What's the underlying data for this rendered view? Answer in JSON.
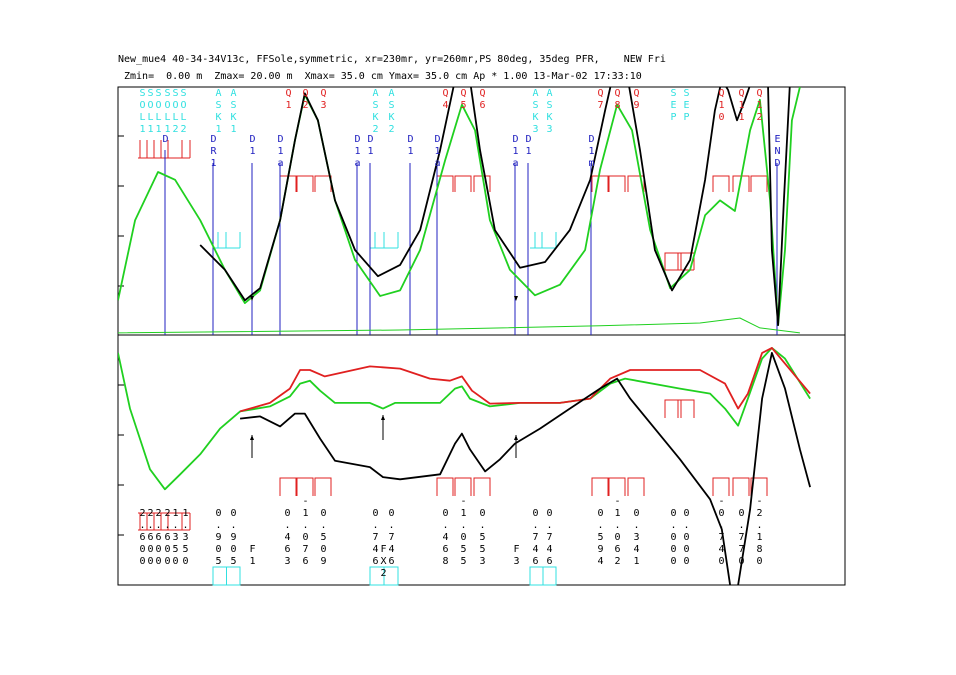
{
  "header": {
    "line1": "New_mue4 40-34-34V13c, FFSole,symmetric, xr=230mr, yr=260mr,PS 80deg, 35deg PFR,    NEW Fri",
    "line2": "Zmin=  0.00 m  Zmax= 20.00 m  Xmax= 35.0 cm Ymax= 35.0 cm Ap * 1.00 13-Mar-02 17:33:10"
  },
  "colors": {
    "cyan": "#30e0e0",
    "red": "#e02020",
    "blue": "#2020c0",
    "green": "#20d020",
    "black": "#000000"
  },
  "element_labels": [
    "SOL1",
    "SOL1",
    "SOL1",
    "SOL1",
    "SOL2",
    "SOL2",
    "ASK1",
    "ASK1",
    "Q1",
    "Q2",
    "Q3",
    "ASK2",
    "ASK2",
    "Q4",
    "Q5",
    "Q6",
    "ASK3",
    "ASK3",
    "Q7",
    "Q8",
    "Q9",
    "SEP",
    "SEP",
    "Q10",
    "Q11",
    "Q12"
  ],
  "element_label_colors": [
    "cyan",
    "cyan",
    "cyan",
    "cyan",
    "cyan",
    "cyan",
    "cyan",
    "cyan",
    "red",
    "red",
    "red",
    "cyan",
    "cyan",
    "red",
    "red",
    "red",
    "cyan",
    "cyan",
    "red",
    "red",
    "red",
    "cyan",
    "cyan",
    "red",
    "red",
    "red"
  ],
  "drift_labels": [
    "D",
    "DR1",
    "D1",
    "D1a",
    "D1a",
    "D1",
    "D1",
    "D1a",
    "D1a",
    "D1",
    "D1m",
    "END"
  ],
  "strength_labels": [
    " 2.600",
    " 2.600",
    " 2.600",
    " 2.600",
    " 1.350",
    " 1.350",
    " 0.905",
    " 0.905",
    "    F1",
    " 0.463",
    "-1.076",
    " 0.509",
    " 0.746",
    "    FX2",
    " 0.746",
    " 0.468",
    "-1.055",
    " 0.553",
    "    F3",
    " 0.746",
    " 0.746",
    " 0.594",
    "-1.062",
    " 0.341",
    " 0.000",
    " 0.000",
    "-0.740",
    " 0.770",
    "-2.180"
  ],
  "chart_data": {
    "type": "line",
    "title": "",
    "x_range_m": [
      0,
      20
    ],
    "panels": [
      {
        "name": "top",
        "y_range_cm": [
          0,
          35
        ],
        "series": [
          {
            "color": "green",
            "points": [
              [
                0,
                4.9
              ],
              [
                0.47,
                16.2
              ],
              [
                1.1,
                23.0
              ],
              [
                1.57,
                21.9
              ],
              [
                2.26,
                16.2
              ],
              [
                2.94,
                9.2
              ],
              [
                3.49,
                4.5
              ],
              [
                3.91,
                6.3
              ],
              [
                4.46,
                16.2
              ],
              [
                4.87,
                27.5
              ],
              [
                5.14,
                33.9
              ],
              [
                5.5,
                30.3
              ],
              [
                5.97,
                19.0
              ],
              [
                6.52,
                10.6
              ],
              [
                7.21,
                5.5
              ],
              [
                7.76,
                6.3
              ],
              [
                8.31,
                12.0
              ],
              [
                9.0,
                24.7
              ],
              [
                9.46,
                32.5
              ],
              [
                9.82,
                28.9
              ],
              [
                10.23,
                16.2
              ],
              [
                10.78,
                9.2
              ],
              [
                11.47,
                5.6
              ],
              [
                12.16,
                7.1
              ],
              [
                12.85,
                12.0
              ],
              [
                13.26,
                23.3
              ],
              [
                13.73,
                32.5
              ],
              [
                14.14,
                28.9
              ],
              [
                14.64,
                14.8
              ],
              [
                15.19,
                6.6
              ],
              [
                15.74,
                9.2
              ],
              [
                16.15,
                16.9
              ],
              [
                16.56,
                19.0
              ],
              [
                16.97,
                17.5
              ],
              [
                17.39,
                28.9
              ],
              [
                17.66,
                33.2
              ],
              [
                17.94,
                19.0
              ],
              [
                18.16,
                1.4
              ],
              [
                18.35,
                12.0
              ],
              [
                18.54,
                30.3
              ],
              [
                18.76,
                35
              ]
            ]
          },
          {
            "color": "black",
            "points": [
              [
                2.26,
                12.7
              ],
              [
                2.94,
                9.2
              ],
              [
                3.49,
                4.9
              ],
              [
                3.91,
                6.6
              ],
              [
                4.46,
                16.2
              ],
              [
                4.87,
                27.5
              ],
              [
                5.14,
                34.1
              ],
              [
                5.5,
                30.3
              ],
              [
                5.97,
                19.0
              ],
              [
                6.52,
                12.0
              ],
              [
                7.15,
                8.3
              ],
              [
                7.76,
                9.9
              ],
              [
                8.31,
                14.8
              ],
              [
                8.86,
                26.1
              ],
              [
                9.27,
                36
              ],
              [
                9.68,
                36
              ],
              [
                9.96,
                26.1
              ],
              [
                10.37,
                14.8
              ],
              [
                11.06,
                9.5
              ],
              [
                11.75,
                10.3
              ],
              [
                12.43,
                14.8
              ],
              [
                12.99,
                21.9
              ],
              [
                13.4,
                31.7
              ],
              [
                13.59,
                36
              ],
              [
                14.03,
                36
              ],
              [
                14.36,
                26.1
              ],
              [
                14.77,
                12.0
              ],
              [
                15.24,
                6.3
              ],
              [
                15.74,
                10.6
              ],
              [
                16.15,
                21.9
              ],
              [
                16.42,
                31.7
              ],
              [
                16.61,
                36
              ],
              [
                16.78,
                34.6
              ],
              [
                17.03,
                30.3
              ],
              [
                17.25,
                33.2
              ],
              [
                17.44,
                36
              ],
              [
                17.88,
                36
              ],
              [
                17.99,
                12.0
              ],
              [
                18.16,
                1.4
              ],
              [
                18.32,
                19.0
              ],
              [
                18.49,
                36
              ]
            ]
          },
          {
            "color": "green",
            "points": [
              [
                0,
                0.3
              ],
              [
                7.76,
                0.7
              ],
              [
                13.26,
                1.3
              ],
              [
                16.01,
                1.7
              ],
              [
                17.11,
                2.4
              ],
              [
                17.66,
                1.0
              ],
              [
                18.76,
                0.3
              ]
            ]
          }
        ]
      },
      {
        "name": "bottom",
        "y_range": [
          0,
          35
        ],
        "series": [
          {
            "color": "green",
            "points": [
              [
                0,
                32.5
              ],
              [
                0.33,
                24.7
              ],
              [
                0.88,
                16.2
              ],
              [
                1.29,
                13.4
              ],
              [
                1.71,
                15.5
              ],
              [
                2.26,
                18.3
              ],
              [
                2.81,
                21.9
              ],
              [
                3.36,
                24.3
              ],
              [
                4.18,
                25.0
              ],
              [
                4.73,
                26.4
              ],
              [
                5.01,
                28.2
              ],
              [
                5.28,
                28.6
              ],
              [
                5.56,
                27.2
              ],
              [
                5.97,
                25.5
              ],
              [
                6.93,
                25.5
              ],
              [
                7.29,
                24.7
              ],
              [
                7.62,
                25.5
              ],
              [
                8.86,
                25.5
              ],
              [
                9.27,
                27.5
              ],
              [
                9.46,
                27.8
              ],
              [
                9.68,
                26.1
              ],
              [
                10.23,
                25.0
              ],
              [
                11.06,
                25.5
              ],
              [
                12.16,
                25.5
              ],
              [
                12.99,
                26.1
              ],
              [
                13.54,
                28.2
              ],
              [
                13.95,
                28.9
              ],
              [
                15.46,
                27.5
              ],
              [
                16.29,
                26.8
              ],
              [
                16.7,
                24.7
              ],
              [
                17.06,
                22.3
              ],
              [
                17.33,
                26.1
              ],
              [
                17.72,
                31.7
              ],
              [
                17.99,
                33.2
              ],
              [
                18.35,
                31.7
              ],
              [
                19.04,
                26.1
              ]
            ]
          },
          {
            "color": "red",
            "points": [
              [
                3.36,
                24.3
              ],
              [
                4.18,
                25.5
              ],
              [
                4.73,
                27.5
              ],
              [
                5.01,
                30.1
              ],
              [
                5.28,
                30.1
              ],
              [
                5.69,
                29.2
              ],
              [
                6.93,
                30.6
              ],
              [
                7.76,
                30.3
              ],
              [
                8.58,
                28.9
              ],
              [
                9.13,
                28.6
              ],
              [
                9.46,
                29.2
              ],
              [
                9.74,
                27.2
              ],
              [
                10.23,
                25.4
              ],
              [
                11.06,
                25.5
              ],
              [
                12.16,
                25.5
              ],
              [
                12.99,
                26.1
              ],
              [
                13.54,
                28.9
              ],
              [
                14.09,
                30.1
              ],
              [
                16.01,
                30.1
              ],
              [
                16.7,
                28.2
              ],
              [
                17.06,
                24.7
              ],
              [
                17.33,
                26.8
              ],
              [
                17.72,
                32.5
              ],
              [
                17.99,
                33.2
              ],
              [
                19.04,
                26.8
              ]
            ]
          },
          {
            "color": "black",
            "points": [
              [
                3.36,
                23.3
              ],
              [
                3.91,
                23.6
              ],
              [
                4.46,
                22.2
              ],
              [
                4.87,
                24.0
              ],
              [
                5.14,
                24.0
              ],
              [
                5.56,
                20.5
              ],
              [
                5.97,
                17.4
              ],
              [
                6.93,
                16.5
              ],
              [
                7.29,
                15.1
              ],
              [
                7.76,
                14.8
              ],
              [
                8.86,
                15.5
              ],
              [
                9.27,
                19.8
              ],
              [
                9.46,
                21.2
              ],
              [
                9.68,
                19.0
              ],
              [
                10.1,
                15.9
              ],
              [
                10.51,
                17.6
              ],
              [
                10.92,
                19.8
              ],
              [
                11.61,
                21.9
              ],
              [
                12.43,
                24.7
              ],
              [
                13.26,
                27.5
              ],
              [
                13.73,
                28.9
              ],
              [
                14.09,
                26.1
              ],
              [
                15.46,
                17.6
              ],
              [
                16.29,
                12.0
              ],
              [
                16.61,
                7.8
              ],
              [
                16.84,
                0
              ]
            ]
          },
          {
            "color": "black",
            "points": [
              [
                17.06,
                0
              ],
              [
                17.39,
                10.6
              ],
              [
                17.72,
                26.1
              ],
              [
                17.99,
                32.5
              ],
              [
                18.35,
                27.5
              ],
              [
                18.76,
                19.0
              ],
              [
                19.04,
                13.7
              ]
            ]
          }
        ]
      }
    ]
  }
}
